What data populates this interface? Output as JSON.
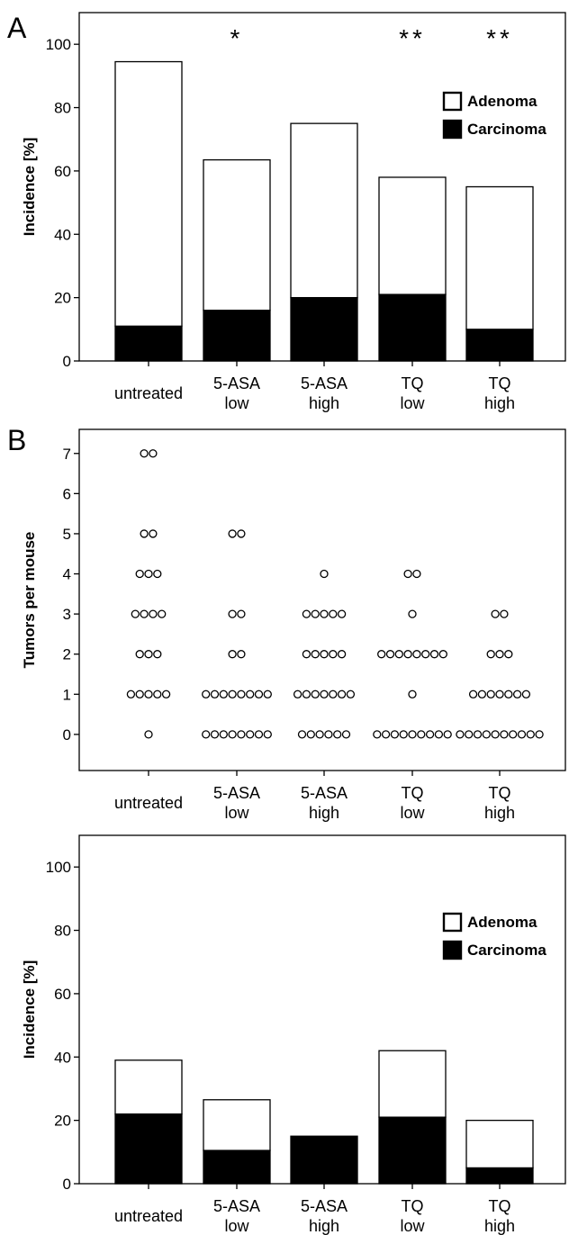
{
  "chart_data": [
    {
      "type": "bar",
      "stacked": true,
      "panel_label": "A",
      "categories": [
        [
          "untreated"
        ],
        [
          "5-ASA",
          "low"
        ],
        [
          "5-ASA",
          "high"
        ],
        [
          "TQ",
          "low"
        ],
        [
          "TQ",
          "high"
        ]
      ],
      "ylabel": "Incidence [%]",
      "ylim": [
        0,
        110
      ],
      "yticks": [
        0,
        20,
        40,
        60,
        80,
        100
      ],
      "series": [
        {
          "name": "Carcinoma",
          "fill": "#000000",
          "values": [
            11,
            16,
            20,
            21,
            10
          ]
        },
        {
          "name": "Adenoma",
          "fill": "#ffffff",
          "values": [
            83.5,
            47.5,
            55,
            37,
            45
          ]
        }
      ],
      "significance": [
        "",
        "*",
        "",
        "**",
        "**"
      ],
      "legend": {
        "position": "upper-right",
        "order": [
          "Adenoma",
          "Carcinoma"
        ]
      }
    },
    {
      "type": "dot",
      "panel_label": "B",
      "categories": [
        [
          "untreated"
        ],
        [
          "5-ASA",
          "low"
        ],
        [
          "5-ASA",
          "high"
        ],
        [
          "TQ",
          "low"
        ],
        [
          "TQ",
          "high"
        ]
      ],
      "ylabel": "Tumors per mouse",
      "ylim": [
        -0.9,
        7.6
      ],
      "yticks": [
        0,
        1,
        2,
        3,
        4,
        5,
        6,
        7
      ],
      "counts": [
        {
          "0": 1,
          "1": 5,
          "2": 3,
          "3": 4,
          "4": 3,
          "5": 2,
          "7": 2
        },
        {
          "0": 8,
          "1": 8,
          "2": 2,
          "3": 2,
          "5": 2
        },
        {
          "0": 6,
          "1": 7,
          "2": 5,
          "3": 5,
          "4": 1
        },
        {
          "0": 9,
          "1": 1,
          "2": 8,
          "3": 1,
          "4": 2
        },
        {
          "0": 10,
          "1": 7,
          "2": 3,
          "3": 2
        }
      ]
    },
    {
      "type": "bar",
      "stacked": true,
      "panel_label": "",
      "categories": [
        [
          "untreated"
        ],
        [
          "5-ASA",
          "low"
        ],
        [
          "5-ASA",
          "high"
        ],
        [
          "TQ",
          "low"
        ],
        [
          "TQ",
          "high"
        ]
      ],
      "ylabel": "Incidence [%]",
      "ylim": [
        0,
        110
      ],
      "yticks": [
        0,
        20,
        40,
        60,
        80,
        100
      ],
      "series": [
        {
          "name": "Carcinoma",
          "fill": "#000000",
          "values": [
            22,
            10.5,
            15,
            21,
            5
          ]
        },
        {
          "name": "Adenoma",
          "fill": "#ffffff",
          "values": [
            17,
            16,
            0,
            21,
            15
          ]
        }
      ],
      "significance": [
        "",
        "",
        "",
        "",
        ""
      ],
      "legend": {
        "position": "upper-right",
        "order": [
          "Adenoma",
          "Carcinoma"
        ]
      }
    }
  ]
}
